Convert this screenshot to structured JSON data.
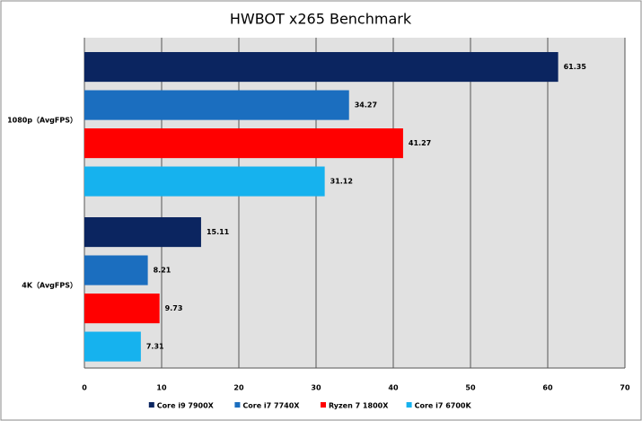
{
  "chart_data": {
    "type": "hbar",
    "title": "HWBOT x265 Benchmark",
    "categories": [
      "1080p（AvgFPS）",
      "4K（AvgFPS）"
    ],
    "series": [
      {
        "name": "Core i9 7900X",
        "color": "#0b2560",
        "values": [
          61.35,
          15.11
        ]
      },
      {
        "name": "Core i7 7740X",
        "color": "#1b6ebf",
        "values": [
          34.27,
          8.21
        ]
      },
      {
        "name": "Ryzen 7 1800X",
        "color": "#ff0000",
        "values": [
          41.27,
          9.73
        ]
      },
      {
        "name": "Core i7 6700K",
        "color": "#16b2ee",
        "values": [
          31.12,
          7.31
        ]
      }
    ],
    "xlim": [
      0,
      70
    ],
    "xticks": [
      0,
      10,
      20,
      30,
      40,
      50,
      60,
      70
    ],
    "grid": true
  }
}
